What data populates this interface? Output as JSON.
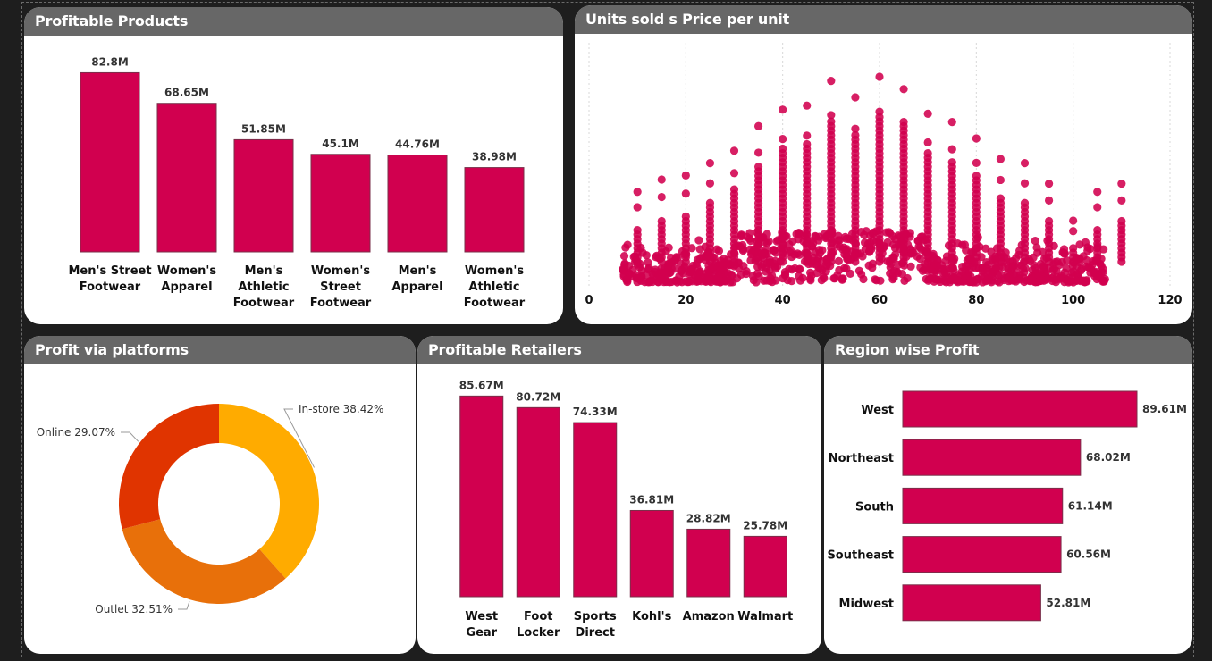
{
  "colors": {
    "bar": "#d1004f",
    "bar_stroke": "#7a2f4a",
    "scatter": "#d1004f",
    "header_bg": "#676767",
    "pie": [
      "#ffab00",
      "#e8700a",
      "#e03400"
    ]
  },
  "cards": {
    "products_title": "Profitable Products",
    "scatter_title": "Units sold s Price per unit",
    "platforms_title": "Profit via platforms",
    "retailers_title": "Profitable Retailers",
    "region_title": "Region wise Profit"
  },
  "chart_data": [
    {
      "id": "products",
      "type": "bar",
      "categories": [
        [
          "Men's Street",
          "Footwear"
        ],
        [
          "Women's",
          "Apparel"
        ],
        [
          "Men's",
          "Athletic",
          "Footwear"
        ],
        [
          "Women's",
          "Street",
          "Footwear"
        ],
        [
          "Men's",
          "Apparel"
        ],
        [
          "Women's",
          "Athletic",
          "Footwear"
        ]
      ],
      "values": [
        82.8,
        68.65,
        51.85,
        45.1,
        44.76,
        38.98
      ],
      "labels": [
        "82.8M",
        "68.65M",
        "51.85M",
        "45.1M",
        "44.76M",
        "38.98M"
      ],
      "ylim": [
        0,
        90
      ]
    },
    {
      "id": "scatter",
      "type": "scatter",
      "xlabel": "",
      "ylabel": "",
      "xlim": [
        0,
        120
      ],
      "xticks": [
        0,
        20,
        40,
        60,
        80,
        100,
        120
      ],
      "grid": true,
      "columns": [
        {
          "x": 10,
          "top": 2.2
        },
        {
          "x": 15,
          "top": 2.5
        },
        {
          "x": 20,
          "top": 2.6
        },
        {
          "x": 25,
          "top": 2.9
        },
        {
          "x": 30,
          "top": 3.2
        },
        {
          "x": 35,
          "top": 3.8
        },
        {
          "x": 40,
          "top": 4.2
        },
        {
          "x": 45,
          "top": 4.3
        },
        {
          "x": 50,
          "top": 4.9
        },
        {
          "x": 55,
          "top": 4.5
        },
        {
          "x": 60,
          "top": 5.0
        },
        {
          "x": 65,
          "top": 4.7
        },
        {
          "x": 70,
          "top": 4.1
        },
        {
          "x": 75,
          "top": 3.9
        },
        {
          "x": 80,
          "top": 3.5
        },
        {
          "x": 85,
          "top": 3.0
        },
        {
          "x": 90,
          "top": 2.9
        },
        {
          "x": 95,
          "top": 2.4
        },
        {
          "x": 100,
          "top": 1.5
        },
        {
          "x": 105,
          "top": 2.2
        },
        {
          "x": 110,
          "top": 2.4
        }
      ]
    },
    {
      "id": "platforms",
      "type": "pie",
      "donut": true,
      "slices": [
        {
          "name": "In-store",
          "value": 38.42,
          "label": "In-store 38.42%"
        },
        {
          "name": "Outlet",
          "value": 32.51,
          "label": "Outlet 32.51%"
        },
        {
          "name": "Online",
          "value": 29.07,
          "label": "Online 29.07%"
        }
      ]
    },
    {
      "id": "retailers",
      "type": "bar",
      "categories": [
        [
          "West",
          "Gear"
        ],
        [
          "Foot",
          "Locker"
        ],
        [
          "Sports",
          "Direct"
        ],
        [
          "Kohl's"
        ],
        [
          "Amazon"
        ],
        [
          "Walmart"
        ]
      ],
      "values": [
        85.67,
        80.72,
        74.33,
        36.81,
        28.82,
        25.78
      ],
      "labels": [
        "85.67M",
        "80.72M",
        "74.33M",
        "36.81M",
        "28.82M",
        "25.78M"
      ],
      "ylim": [
        0,
        90
      ]
    },
    {
      "id": "regions",
      "type": "bar",
      "orientation": "horizontal",
      "categories": [
        "West",
        "Northeast",
        "South",
        "Southeast",
        "Midwest"
      ],
      "values": [
        89.61,
        68.02,
        61.14,
        60.56,
        52.81
      ],
      "labels": [
        "89.61M",
        "68.02M",
        "61.14M",
        "60.56M",
        "52.81M"
      ],
      "xlim": [
        0,
        89.61
      ]
    }
  ]
}
